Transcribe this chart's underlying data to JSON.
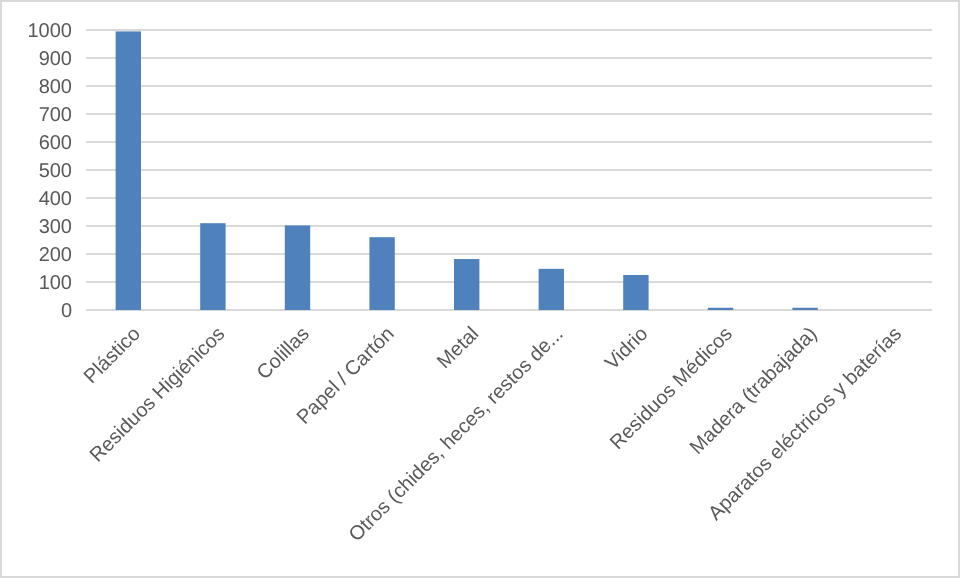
{
  "chart_data": {
    "type": "bar",
    "categories": [
      "Plástico",
      "Residuos Higiénicos",
      "Colillas",
      "Papel / Cartón",
      "Metal",
      "Otros (chides, heces, restos de...",
      "Vidrio",
      "Residuos Médicos",
      "Madera (trabajada)",
      "Aparatos eléctricos y baterías"
    ],
    "values": [
      995,
      310,
      302,
      260,
      182,
      147,
      125,
      8,
      8,
      0
    ],
    "color": "#4f81bd",
    "ylim": [
      0,
      1000
    ],
    "yticks": [
      0,
      100,
      200,
      300,
      400,
      500,
      600,
      700,
      800,
      900,
      1000
    ],
    "grid": "y"
  }
}
